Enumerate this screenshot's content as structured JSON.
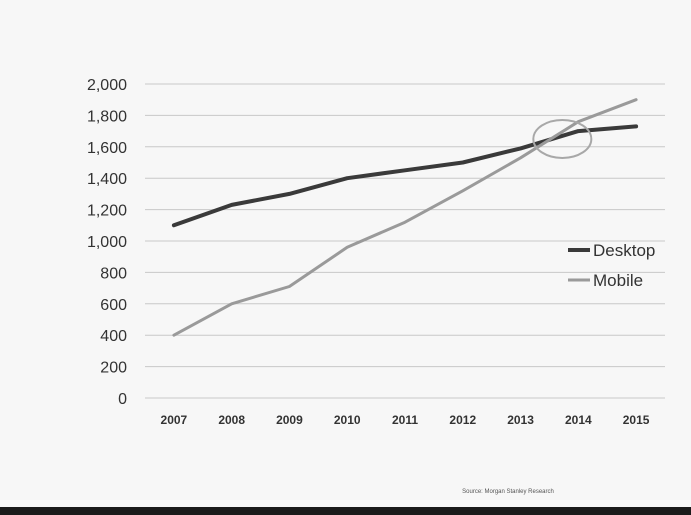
{
  "chart_data": {
    "type": "line",
    "title": "",
    "xlabel": "",
    "ylabel": "",
    "categories": [
      "2007",
      "2008",
      "2009",
      "2010",
      "2011",
      "2012",
      "2013",
      "2014",
      "2015"
    ],
    "ylim": [
      0,
      2000
    ],
    "yticks": [
      "0",
      "200",
      "400",
      "600",
      "800",
      "1,000",
      "1,200",
      "1,400",
      "1,600",
      "1,800",
      "2,000"
    ],
    "grid": true,
    "legend_position": "right",
    "series": [
      {
        "name": "Desktop",
        "color": "#3a3a3a",
        "values": [
          1100,
          1230,
          1300,
          1400,
          1450,
          1500,
          1590,
          1700,
          1730
        ]
      },
      {
        "name": "Mobile",
        "color": "#9a9a9a",
        "values": [
          400,
          600,
          710,
          960,
          1120,
          1320,
          1530,
          1760,
          1900
        ]
      }
    ],
    "annotations": [
      {
        "type": "ellipse",
        "description": "circled crossover point",
        "x": "2014",
        "y": 1650
      }
    ],
    "source": "Source: Morgan Stanley Research"
  }
}
